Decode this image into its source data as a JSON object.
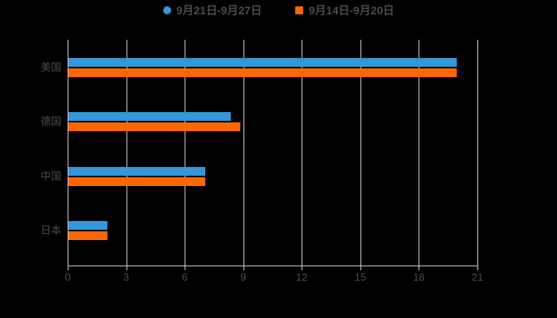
{
  "legend": {
    "items": [
      {
        "label": "9月21日-9月27日",
        "color": "#3398db",
        "marker": "circle"
      },
      {
        "label": "9月14日-9月20日",
        "color": "#ff6600",
        "marker": "square"
      }
    ]
  },
  "chart_data": {
    "type": "bar",
    "orientation": "horizontal",
    "title": "",
    "xlabel": "",
    "ylabel": "",
    "categories": [
      "美国",
      "德国",
      "中国",
      "日本"
    ],
    "series": [
      {
        "name": "9月21日-9月27日",
        "color": "#3398db",
        "values": [
          19.9,
          8.3,
          7.0,
          2.0
        ]
      },
      {
        "name": "9月14日-9月20日",
        "color": "#ff6600",
        "values": [
          19.9,
          8.8,
          7.0,
          2.0
        ]
      }
    ],
    "xlim": [
      0,
      21
    ],
    "x_ticks": [
      "0",
      "3",
      "6",
      "9",
      "12",
      "15",
      "18",
      "21"
    ],
    "grid": true,
    "legend_position": "top",
    "colors": {
      "background": "#000000",
      "grid": "#cccccc",
      "axis": "#cccccc",
      "text": "#4d4d4d"
    }
  }
}
